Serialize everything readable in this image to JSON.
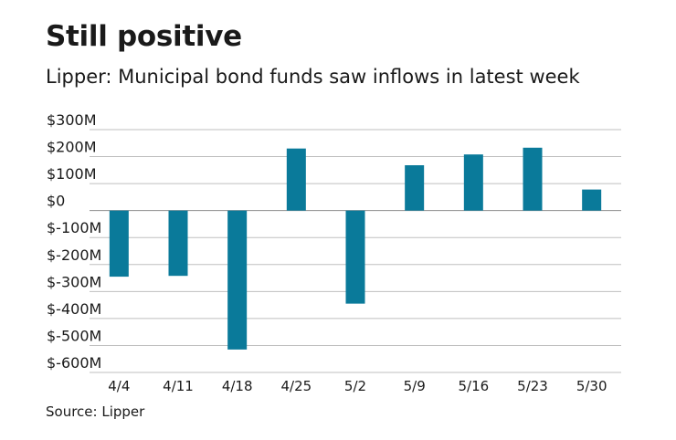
{
  "chart_data": {
    "type": "bar",
    "title": "Still positive",
    "subtitle": "Lipper: Municipal bond funds saw inflows in latest week",
    "source": "Source: Lipper",
    "xlabel": "",
    "ylabel": "",
    "categories": [
      "4/4",
      "4/11",
      "4/18",
      "4/25",
      "5/2",
      "5/9",
      "5/16",
      "5/23",
      "5/30"
    ],
    "values": [
      -245,
      -242,
      -515,
      230,
      -345,
      168,
      208,
      233,
      78
    ],
    "ylim": [
      -600,
      300
    ],
    "yticks": [
      300,
      200,
      100,
      0,
      -100,
      -200,
      -300,
      -400,
      -500,
      -600
    ],
    "ytick_labels": [
      "$300M",
      "$200M",
      "$100M",
      "$0",
      "$-100M",
      "$-200M",
      "$-300M",
      "$-400M",
      "$-500M",
      "$-600M"
    ],
    "grid": true,
    "bar_color": "#0a7a9a",
    "grid_color": "#bfbfbf"
  }
}
